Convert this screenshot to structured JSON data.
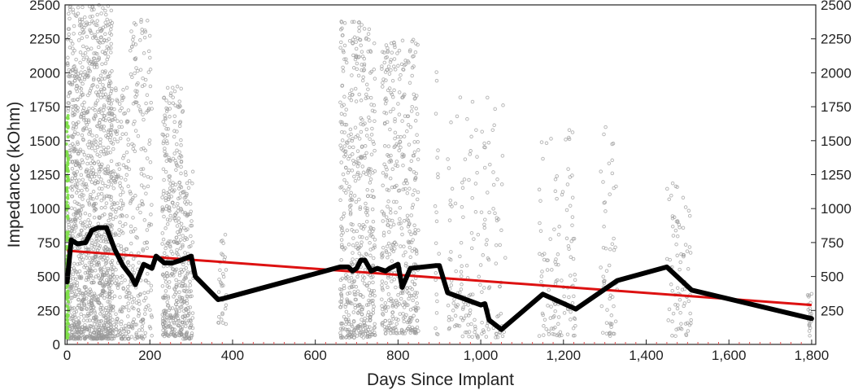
{
  "chart_data": {
    "type": "scatter",
    "xlabel": "Days Since Implant",
    "ylabel": "Impedance (kOhm)",
    "xlim": [
      -5,
      1810
    ],
    "ylim": [
      0,
      2500
    ],
    "x_ticks": [
      {
        "value": 0,
        "label": "0"
      },
      {
        "value": 200,
        "label": "200"
      },
      {
        "value": 400,
        "label": "400"
      },
      {
        "value": 600,
        "label": "600"
      },
      {
        "value": 800,
        "label": "800"
      },
      {
        "value": 1000,
        "label": "1,000"
      },
      {
        "value": 1200,
        "label": "1,200"
      },
      {
        "value": 1400,
        "label": "1,400"
      },
      {
        "value": 1600,
        "label": "1,600"
      },
      {
        "value": 1800,
        "label": "1,800"
      }
    ],
    "y_ticks": [
      {
        "value": 0,
        "label": "0"
      },
      {
        "value": 250,
        "label": "250"
      },
      {
        "value": 500,
        "label": "500"
      },
      {
        "value": 750,
        "label": "750"
      },
      {
        "value": 1000,
        "label": "1000"
      },
      {
        "value": 1250,
        "label": "1250"
      },
      {
        "value": 1500,
        "label": "1500"
      },
      {
        "value": 1750,
        "label": "1750"
      },
      {
        "value": 2000,
        "label": "2000"
      },
      {
        "value": 2250,
        "label": "2250"
      },
      {
        "value": 2500,
        "label": "2500"
      }
    ],
    "y_ticks_right": [
      {
        "value": 250,
        "label": "250"
      },
      {
        "value": 500,
        "label": "500"
      },
      {
        "value": 750,
        "label": "750"
      },
      {
        "value": 1000,
        "label": "1000"
      },
      {
        "value": 1250,
        "label": "1250"
      },
      {
        "value": 1500,
        "label": "1500"
      },
      {
        "value": 1750,
        "label": "1750"
      },
      {
        "value": 2000,
        "label": "2000"
      },
      {
        "value": 2250,
        "label": "2250"
      },
      {
        "value": 2500,
        "label": "2500"
      }
    ],
    "grid": false,
    "colors": {
      "scatter": "#9a9a9a",
      "median_line": "#000000",
      "trend_line": "#dd1111",
      "day0_points": "#7fe04a",
      "minor_ticks": "#e05050"
    },
    "series": [
      {
        "type": "scatter",
        "clusters": [
          {
            "x": [
              0,
              10
            ],
            "y": [
              40,
              2500
            ],
            "density": 8
          },
          {
            "x": [
              10,
              110
            ],
            "y": [
              40,
              2500
            ],
            "density": 10
          },
          {
            "x": [
              110,
              150
            ],
            "y": [
              40,
              1900
            ],
            "density": 4
          },
          {
            "x": [
              150,
              205
            ],
            "y": [
              40,
              2400
            ],
            "density": 3
          },
          {
            "x": [
              230,
              280
            ],
            "y": [
              60,
              1900
            ],
            "density": 6
          },
          {
            "x": [
              280,
              305
            ],
            "y": [
              40,
              1300
            ],
            "density": 4
          },
          {
            "x": [
              365,
              385
            ],
            "y": [
              150,
              820
            ],
            "density": 1
          },
          {
            "x": [
              660,
              745
            ],
            "y": [
              50,
              2380
            ],
            "density": 5
          },
          {
            "x": [
              760,
              850
            ],
            "y": [
              80,
              2260
            ],
            "density": 4
          },
          {
            "x": [
              890,
              900
            ],
            "y": [
              70,
              2210
            ],
            "density": 1
          },
          {
            "x": [
              920,
              1060
            ],
            "y": [
              50,
              1850
            ],
            "density": 1
          },
          {
            "x": [
              1140,
              1230
            ],
            "y": [
              60,
              1600
            ],
            "density": 1
          },
          {
            "x": [
              1290,
              1330
            ],
            "y": [
              60,
              1600
            ],
            "density": 1
          },
          {
            "x": [
              1450,
              1510
            ],
            "y": [
              60,
              1270
            ],
            "density": 1
          },
          {
            "x": [
              1790,
              1800
            ],
            "y": [
              60,
              380
            ],
            "density": 1
          }
        ]
      },
      {
        "type": "line",
        "x": [
          0,
          10,
          25,
          45,
          60,
          75,
          95,
          115,
          135,
          155,
          165,
          185,
          205,
          215,
          235,
          255,
          275,
          300,
          310,
          365,
          380,
          660,
          680,
          690,
          700,
          710,
          720,
          735,
          750,
          770,
          780,
          800,
          810,
          830,
          890,
          900,
          920,
          1000,
          1010,
          1020,
          1050,
          1150,
          1230,
          1330,
          1450,
          1510,
          1800
        ],
        "y": [
          460,
          770,
          740,
          750,
          840,
          860,
          860,
          700,
          580,
          500,
          440,
          590,
          560,
          650,
          600,
          600,
          620,
          650,
          500,
          330,
          340,
          570,
          570,
          540,
          560,
          620,
          620,
          540,
          560,
          540,
          560,
          590,
          420,
          560,
          580,
          580,
          380,
          290,
          300,
          180,
          110,
          370,
          260,
          470,
          570,
          400,
          190
        ]
      },
      {
        "type": "line",
        "x": [
          0,
          1800
        ],
        "y": [
          690,
          290
        ]
      },
      {
        "type": "scatter",
        "x_range": [
          -2,
          3
        ],
        "y_range": [
          40,
          1700
        ]
      }
    ]
  }
}
